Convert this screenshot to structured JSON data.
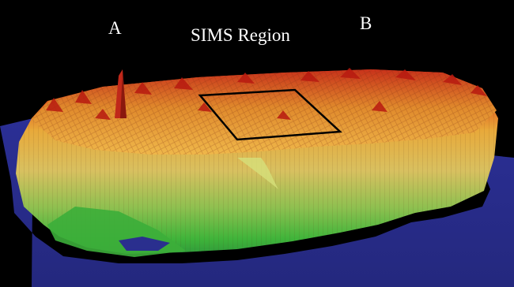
{
  "labels": {
    "corner_a": "A",
    "corner_b": "B",
    "region_title": "SIMS Region"
  },
  "colors": {
    "background": "#000000",
    "base_plane": "#2a2f8e",
    "surface_high": "#c81e10",
    "surface_mid": "#e8a93a",
    "surface_low": "#3fb43a",
    "region_outline": "#000000",
    "label_text": "#ffffff"
  }
}
